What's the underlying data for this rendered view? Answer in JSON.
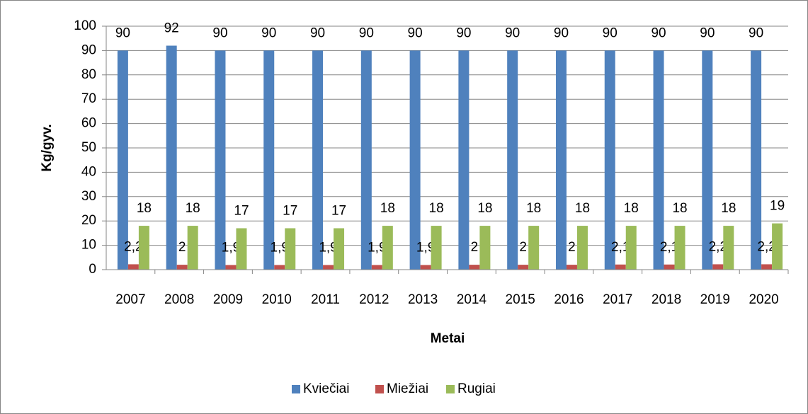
{
  "chart_data": {
    "type": "bar",
    "y_label": "Kg/gyv.",
    "x_label": "Metai",
    "categories": [
      "2007",
      "2008",
      "2009",
      "2010",
      "2011",
      "2012",
      "2013",
      "2014",
      "2015",
      "2016",
      "2017",
      "2018",
      "2019",
      "2020"
    ],
    "series": [
      {
        "name": "Kviečiai",
        "color": "#4f81bd",
        "values": [
          90,
          92,
          90,
          90,
          90,
          90,
          90,
          90,
          90,
          90,
          90,
          90,
          90,
          90
        ]
      },
      {
        "name": "Miežiai",
        "color": "#c0504d",
        "values": [
          2.2,
          2,
          1.9,
          1.9,
          1.9,
          1.9,
          1.9,
          2,
          2,
          2,
          2.1,
          2.1,
          2.2,
          2.2
        ],
        "value_labels": [
          "2,2",
          "2",
          "1,9",
          "1,9",
          "1,9",
          "1,9",
          "1,9",
          "2",
          "2",
          "2",
          "2,1",
          "2,1",
          "2,2",
          "2,2"
        ]
      },
      {
        "name": "Rugiai",
        "color": "#9bbb59",
        "values": [
          18,
          18,
          17,
          17,
          17,
          18,
          18,
          18,
          18,
          18,
          18,
          18,
          18,
          19
        ]
      }
    ],
    "ylim": [
      0,
      100
    ],
    "yticks": [
      0,
      10,
      20,
      30,
      40,
      50,
      60,
      70,
      80,
      90,
      100
    ],
    "grid": true,
    "legend": "bottom"
  }
}
